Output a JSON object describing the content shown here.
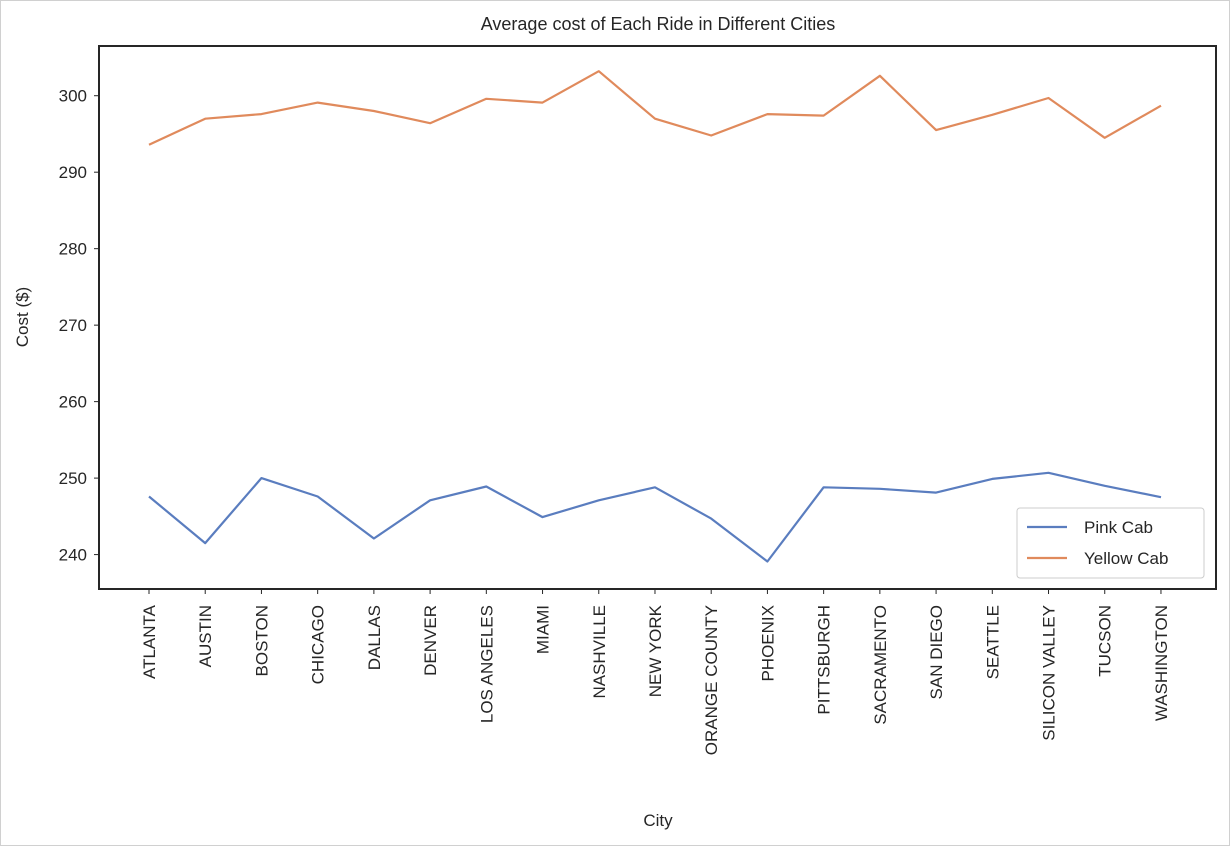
{
  "chart_data": {
    "type": "line",
    "title": "Average cost of Each Ride in Different Cities",
    "xlabel": "City",
    "ylabel": "Cost ($)",
    "categories": [
      "ATLANTA",
      "AUSTIN",
      "BOSTON",
      "CHICAGO",
      "DALLAS",
      "DENVER",
      "LOS ANGELES",
      "MIAMI",
      "NASHVILLE",
      "NEW YORK",
      "ORANGE COUNTY",
      "PHOENIX",
      "PITTSBURGH",
      "SACRAMENTO",
      "SAN DIEGO",
      "SEATTLE",
      "SILICON VALLEY",
      "TUCSON",
      "WASHINGTON"
    ],
    "ylim": [
      235.5,
      306.5
    ],
    "yticks": [
      240,
      250,
      260,
      270,
      280,
      290,
      300
    ],
    "grid": false,
    "legend_position": "lower-right",
    "series": [
      {
        "name": "Pink Cab",
        "color": "#5a7dbf",
        "values": [
          247.6,
          241.5,
          250.0,
          247.6,
          242.1,
          247.1,
          248.9,
          244.9,
          247.1,
          248.8,
          244.7,
          239.1,
          248.8,
          248.6,
          248.1,
          249.9,
          250.7,
          249.0,
          247.5
        ]
      },
      {
        "name": "Yellow Cab",
        "color": "#e08a5c",
        "values": [
          293.6,
          297.0,
          297.6,
          299.1,
          298.0,
          296.4,
          299.6,
          299.1,
          303.2,
          297.0,
          294.8,
          297.6,
          297.4,
          302.6,
          295.5,
          297.5,
          299.7,
          294.5,
          298.7
        ]
      }
    ]
  }
}
